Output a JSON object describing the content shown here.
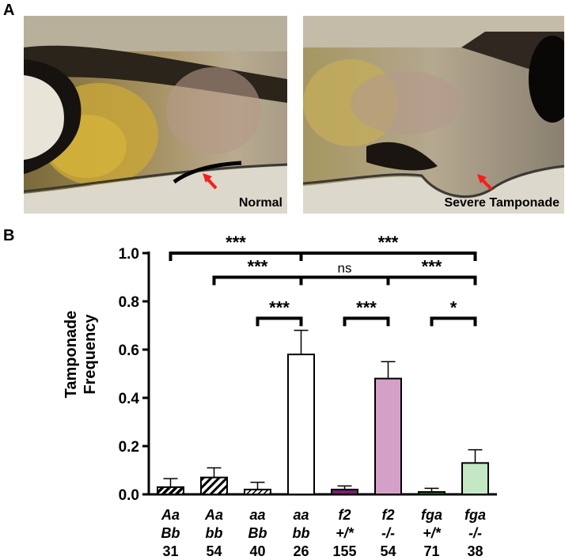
{
  "panels": {
    "a_label": "A",
    "b_label": "B"
  },
  "images": {
    "left_caption": "Normal",
    "right_caption": "Severe Tamponade"
  },
  "colors": {
    "arrow": "#ff1a1a",
    "f2_homo": "#d4a0c8",
    "f2_het": "#7a1f6e",
    "fga_homo": "#c4e8c4",
    "fga_het": "#2e7d32"
  },
  "chart_data": {
    "type": "bar",
    "ylabel": "Tamponade Frequency",
    "ylim": [
      0,
      1.0
    ],
    "yticks": [
      "0.0",
      "0.2",
      "0.4",
      "0.6",
      "0.8",
      "1.0"
    ],
    "categories": [
      {
        "line1": "Aa",
        "line2": "Bb",
        "n": "31",
        "style": "hatch-dense",
        "value": 0.03,
        "error": 0.035
      },
      {
        "line1": "Aa",
        "line2": "bb",
        "n": "54",
        "style": "hatch",
        "value": 0.07,
        "error": 0.04
      },
      {
        "line1": "aa",
        "line2": "Bb",
        "n": "40",
        "style": "hatch-light",
        "value": 0.02,
        "error": 0.03
      },
      {
        "line1": "aa",
        "line2": "bb",
        "n": "26",
        "style": "white",
        "value": 0.58,
        "error": 0.1
      },
      {
        "line1": "f2",
        "line2": "+/*",
        "n": "155",
        "style": "f2_het",
        "value": 0.02,
        "error": 0.015
      },
      {
        "line1": "f2",
        "line2": "-/-",
        "n": "54",
        "style": "f2_homo",
        "value": 0.48,
        "error": 0.07
      },
      {
        "line1": "fga",
        "line2": "+/*",
        "n": "71",
        "style": "fga_het",
        "value": 0.01,
        "error": 0.015
      },
      {
        "line1": "fga",
        "line2": "-/-",
        "n": "38",
        "style": "fga_homo",
        "value": 0.13,
        "error": 0.055
      }
    ],
    "significance": [
      {
        "from": 0,
        "to": 3,
        "level": 1.0,
        "label": "***"
      },
      {
        "from": 3,
        "to": 7,
        "level": 1.0,
        "label": "***"
      },
      {
        "from": 1,
        "to": 3,
        "level": 0.9,
        "label": "***"
      },
      {
        "from": 3,
        "to": 5,
        "level": 0.9,
        "label": "ns"
      },
      {
        "from": 5,
        "to": 7,
        "level": 0.9,
        "label": "***"
      },
      {
        "from": 2,
        "to": 3,
        "level": 0.73,
        "label": "***"
      },
      {
        "from": 4,
        "to": 5,
        "level": 0.73,
        "label": "***"
      },
      {
        "from": 6,
        "to": 7,
        "level": 0.73,
        "label": "*"
      }
    ]
  }
}
